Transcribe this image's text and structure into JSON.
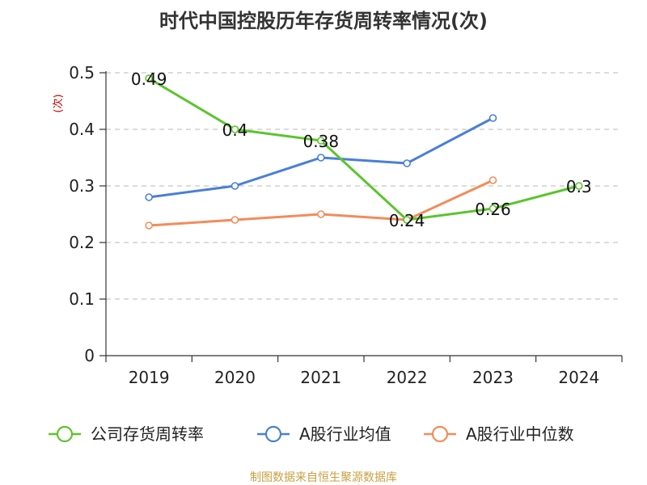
{
  "chart_data": {
    "type": "line",
    "title": "时代中国控股历年存货周转率情况(次)",
    "ylabel": "(次)",
    "xlabel": "",
    "categories": [
      "2019",
      "2020",
      "2021",
      "2022",
      "2023",
      "2024"
    ],
    "ylim": [
      0,
      0.5
    ],
    "yticks": [
      0,
      0.1,
      0.2,
      0.3,
      0.4,
      0.5
    ],
    "ytick_labels": [
      "0",
      "0.1",
      "0.2",
      "0.3",
      "0.4",
      "0.5"
    ],
    "grid": true,
    "legend_position": "bottom",
    "series": [
      {
        "name": "公司存货周转率",
        "color": "#5cc42e",
        "values": [
          0.49,
          0.4,
          0.38,
          0.24,
          0.26,
          0.3
        ],
        "labels": [
          "0.49",
          "0.4",
          "0.38",
          "0.24",
          "0.26",
          "0.3"
        ]
      },
      {
        "name": "A股行业均值",
        "color": "#4a7fd8",
        "values": [
          0.28,
          0.3,
          0.35,
          0.34,
          0.42,
          null
        ]
      },
      {
        "name": "A股行业中位数",
        "color": "#f28c5a",
        "values": [
          0.23,
          0.24,
          0.25,
          0.24,
          0.31,
          null
        ]
      }
    ]
  },
  "source": "制图数据来自恒生聚源数据库"
}
